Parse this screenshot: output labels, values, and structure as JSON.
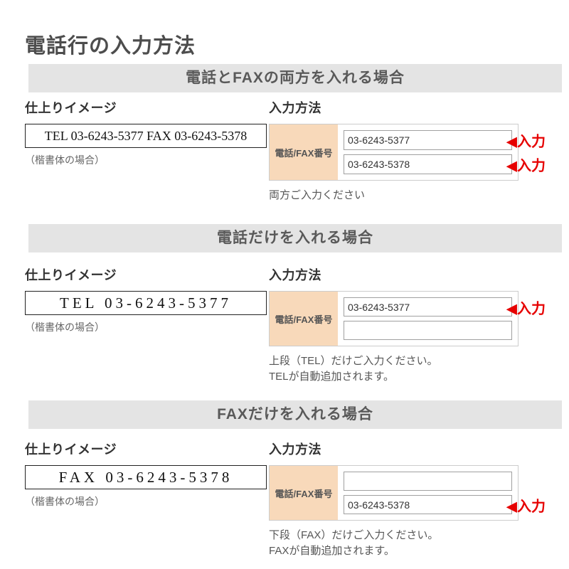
{
  "page": {
    "title": "電話行の入力方法"
  },
  "labels": {
    "finish_heading": "仕上りイメージ",
    "input_heading": "入力方法",
    "caption": "（楷書体の場合）",
    "field_label": "電話/FAX番号",
    "arrow_label": "◀入力"
  },
  "colors": {
    "accent_red": "#e60000",
    "field_label_bg": "#f8d9ba",
    "section_band_bg": "#e4e4e4",
    "title_text": "#4d4d4d"
  },
  "sections": [
    {
      "header": "電話とFAXの両方を入れる場合",
      "sample": "TEL 03-6243-5377 FAX 03-6243-5378",
      "tel_value": "03-6243-5377",
      "fax_value": "03-6243-5378",
      "note_lines": [
        "両方ご入力ください"
      ]
    },
    {
      "header": "電話だけを入れる場合",
      "sample": "TEL 03-6243-5377",
      "tel_value": "03-6243-5377",
      "fax_value": "",
      "note_lines": [
        "上段（TEL）だけご入力ください。",
        "TELが自動追加されます。"
      ]
    },
    {
      "header": "FAXだけを入れる場合",
      "sample": "FAX 03-6243-5378",
      "tel_value": "",
      "fax_value": "03-6243-5378",
      "note_lines": [
        "下段（FAX）だけご入力ください。",
        "FAXが自動追加されます。"
      ]
    }
  ]
}
